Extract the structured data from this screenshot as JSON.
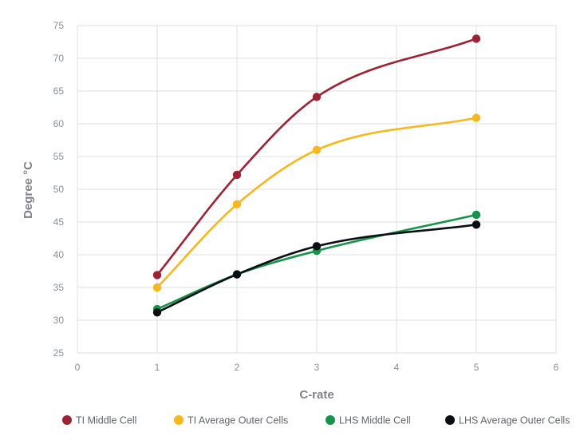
{
  "chart_data": {
    "type": "line",
    "title": "",
    "xlabel": "C-rate",
    "ylabel": "Degree °C",
    "xlim": [
      0,
      6
    ],
    "ylim": [
      25,
      75
    ],
    "xticks": [
      0,
      1,
      2,
      3,
      4,
      5,
      6
    ],
    "yticks": [
      25,
      30,
      35,
      40,
      45,
      50,
      55,
      60,
      65,
      70,
      75
    ],
    "grid": true,
    "legend_position": "bottom",
    "series": [
      {
        "name": "TI Middle Cell",
        "color": "#9b2335",
        "x": [
          1,
          2,
          3,
          5
        ],
        "y": [
          36.9,
          52.2,
          64.1,
          73.0
        ]
      },
      {
        "name": "TI Average Outer Cells",
        "color": "#f5b820",
        "x": [
          1,
          2,
          3,
          5
        ],
        "y": [
          35.0,
          47.7,
          56.0,
          60.9
        ]
      },
      {
        "name": "LHS Middle Cell",
        "color": "#16924a",
        "x": [
          1,
          2,
          3,
          5
        ],
        "y": [
          31.7,
          37.0,
          40.6,
          46.1
        ]
      },
      {
        "name": "LHS Average Outer Cells",
        "color": "#0b0f14",
        "x": [
          1,
          2,
          3,
          5
        ],
        "y": [
          31.2,
          37.0,
          41.3,
          44.6
        ]
      }
    ]
  }
}
